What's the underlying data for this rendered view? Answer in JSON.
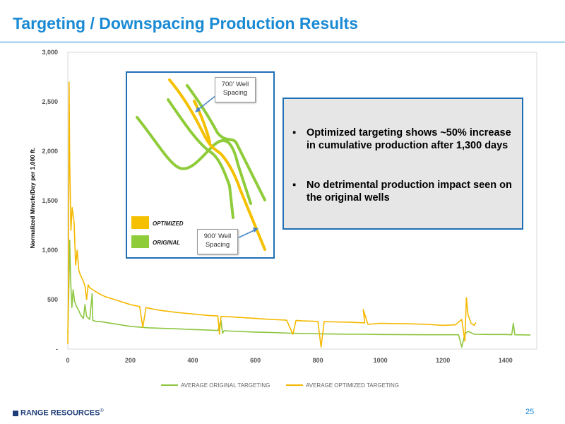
{
  "slide": {
    "title": "Targeting / Downspacing Production Results",
    "footer_logo": "RANGE RESOURCES",
    "footer_logo_mark": "®",
    "page_number": "25"
  },
  "inset": {
    "callout_700": [
      "700’ Well",
      "Spacing"
    ],
    "callout_900": [
      "900’ Well",
      "Spacing"
    ],
    "legend_optimized": "OPTIMIZED",
    "legend_original": "ORIGINAL",
    "colors": {
      "optimized": "#f5c000",
      "original": "#8fcc3a",
      "frame": "#1f6fb5",
      "arrow": "#4a86c8"
    }
  },
  "textbox": {
    "bullets": [
      {
        "marker": "▪",
        "text": "Optimized targeting shows ~50% increase in cumulative production after 1,300 days"
      },
      {
        "marker": "▪",
        "text": "No detrimental production impact seen on the original wells"
      }
    ]
  },
  "chart_data": {
    "type": "line",
    "title": "",
    "xlabel": "",
    "ylabel": "Normalized Mmcfe/Day per 1,000 ft.",
    "xlim": [
      0,
      1500
    ],
    "ylim": [
      0,
      3000
    ],
    "x_ticks": [
      "0",
      "200",
      "400",
      "600",
      "800",
      "1000",
      "1200",
      "1400"
    ],
    "x_tick_values": [
      0,
      200,
      400,
      600,
      800,
      1000,
      1200,
      1400
    ],
    "y_ticks": [
      "-",
      "500",
      "1,000",
      "1,500",
      "2,000",
      "2,500",
      "3,000"
    ],
    "y_tick_values": [
      0,
      500,
      1000,
      1500,
      2000,
      2500,
      3000
    ],
    "legend_position": "bottom",
    "series": [
      {
        "name": "AVERAGE ORIGINAL TARGETING",
        "color": "#8dc63f",
        "points": [
          [
            0,
            150
          ],
          [
            3,
            550
          ],
          [
            6,
            1100
          ],
          [
            9,
            700
          ],
          [
            13,
            420
          ],
          [
            17,
            600
          ],
          [
            22,
            480
          ],
          [
            28,
            430
          ],
          [
            35,
            390
          ],
          [
            42,
            340
          ],
          [
            50,
            310
          ],
          [
            55,
            450
          ],
          [
            60,
            330
          ],
          [
            70,
            300
          ],
          [
            78,
            560
          ],
          [
            80,
            290
          ],
          [
            90,
            280
          ],
          [
            100,
            280
          ],
          [
            120,
            270
          ],
          [
            150,
            255
          ],
          [
            180,
            240
          ],
          [
            200,
            230
          ],
          [
            230,
            222
          ],
          [
            260,
            215
          ],
          [
            300,
            210
          ],
          [
            350,
            205
          ],
          [
            380,
            200
          ],
          [
            400,
            198
          ],
          [
            450,
            192
          ],
          [
            480,
            188
          ],
          [
            490,
            290
          ],
          [
            495,
            160
          ],
          [
            500,
            186
          ],
          [
            520,
            182
          ],
          [
            550,
            178
          ],
          [
            600,
            172
          ],
          [
            650,
            168
          ],
          [
            700,
            162
          ],
          [
            750,
            158
          ],
          [
            800,
            155
          ],
          [
            850,
            152
          ],
          [
            900,
            150
          ],
          [
            950,
            150
          ],
          [
            1000,
            148
          ],
          [
            1050,
            147
          ],
          [
            1100,
            146
          ],
          [
            1150,
            145
          ],
          [
            1200,
            145
          ],
          [
            1250,
            145
          ],
          [
            1260,
            20
          ],
          [
            1270,
            150
          ],
          [
            1280,
            180
          ],
          [
            1300,
            150
          ],
          [
            1350,
            148
          ],
          [
            1400,
            148
          ],
          [
            1420,
            145
          ],
          [
            1425,
            260
          ],
          [
            1430,
            145
          ],
          [
            1480,
            142
          ]
        ]
      },
      {
        "name": "AVERAGE OPTIMIZED TARGETING",
        "color": "#f5b800",
        "points": [
          [
            0,
            50
          ],
          [
            2,
            600
          ],
          [
            4,
            2700
          ],
          [
            6,
            1900
          ],
          [
            10,
            1200
          ],
          [
            14,
            1430
          ],
          [
            20,
            1280
          ],
          [
            25,
            850
          ],
          [
            30,
            1000
          ],
          [
            35,
            800
          ],
          [
            40,
            750
          ],
          [
            48,
            700
          ],
          [
            55,
            640
          ],
          [
            60,
            500
          ],
          [
            65,
            650
          ],
          [
            70,
            620
          ],
          [
            80,
            600
          ],
          [
            90,
            580
          ],
          [
            100,
            560
          ],
          [
            120,
            530
          ],
          [
            150,
            500
          ],
          [
            180,
            470
          ],
          [
            200,
            450
          ],
          [
            230,
            430
          ],
          [
            240,
            220
          ],
          [
            250,
            420
          ],
          [
            280,
            400
          ],
          [
            300,
            390
          ],
          [
            350,
            370
          ],
          [
            400,
            355
          ],
          [
            450,
            340
          ],
          [
            480,
            335
          ],
          [
            485,
            150
          ],
          [
            490,
            330
          ],
          [
            500,
            330
          ],
          [
            550,
            320
          ],
          [
            600,
            310
          ],
          [
            650,
            300
          ],
          [
            700,
            292
          ],
          [
            720,
            150
          ],
          [
            730,
            290
          ],
          [
            750,
            285
          ],
          [
            800,
            280
          ],
          [
            810,
            20
          ],
          [
            820,
            278
          ],
          [
            850,
            275
          ],
          [
            900,
            272
          ],
          [
            950,
            265
          ],
          [
            945,
            400
          ],
          [
            960,
            250
          ],
          [
            1000,
            260
          ],
          [
            1050,
            258
          ],
          [
            1100,
            255
          ],
          [
            1150,
            250
          ],
          [
            1200,
            240
          ],
          [
            1240,
            245
          ],
          [
            1260,
            300
          ],
          [
            1270,
            80
          ],
          [
            1275,
            520
          ],
          [
            1280,
            350
          ],
          [
            1290,
            260
          ],
          [
            1300,
            240
          ],
          [
            1305,
            270
          ]
        ]
      }
    ]
  }
}
